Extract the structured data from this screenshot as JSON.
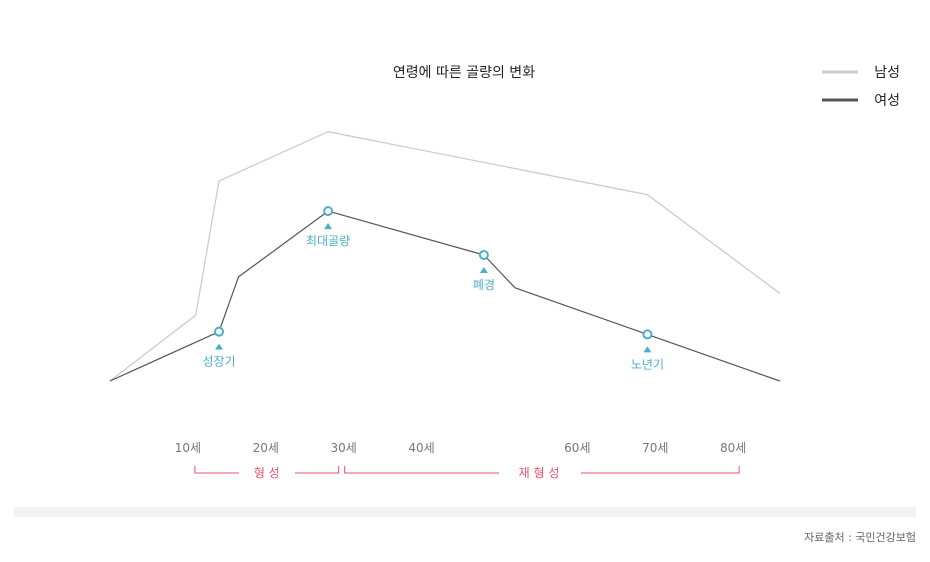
{
  "chart_data": {
    "type": "line",
    "title": "연령에 따른 골량의 변화",
    "legend_position": "top-right",
    "grid": false,
    "xlim": [
      0,
      90
    ],
    "ylim": [
      0,
      100
    ],
    "x_ticks": [
      {
        "value": 10,
        "label": "10세"
      },
      {
        "value": 20,
        "label": "20세"
      },
      {
        "value": 30,
        "label": "30세"
      },
      {
        "value": 40,
        "label": "40세"
      },
      {
        "value": 60,
        "label": "60세"
      },
      {
        "value": 70,
        "label": "70세"
      },
      {
        "value": 80,
        "label": "80세"
      }
    ],
    "series": [
      {
        "name": "남성",
        "color": "#cccccc",
        "points": [
          {
            "x": 0,
            "y": 0
          },
          {
            "x": 11,
            "y": 24
          },
          {
            "x": 14,
            "y": 73
          },
          {
            "x": 28,
            "y": 91
          },
          {
            "x": 69,
            "y": 68
          },
          {
            "x": 86,
            "y": 32
          }
        ]
      },
      {
        "name": "여성",
        "color": "#555555",
        "points": [
          {
            "x": 0,
            "y": 0
          },
          {
            "x": 14,
            "y": 18
          },
          {
            "x": 16.5,
            "y": 38
          },
          {
            "x": 28,
            "y": 62
          },
          {
            "x": 48,
            "y": 46
          },
          {
            "x": 52,
            "y": 34
          },
          {
            "x": 69,
            "y": 17
          },
          {
            "x": 86,
            "y": 0
          }
        ]
      }
    ],
    "annotations": [
      {
        "label": "성장기",
        "x": 14,
        "y": 18
      },
      {
        "label": "최대골량",
        "x": 28,
        "y": 62
      },
      {
        "label": "폐경",
        "x": 48,
        "y": 46
      },
      {
        "label": "노년기",
        "x": 69,
        "y": 17
      }
    ],
    "stages": [
      {
        "label": "형 성",
        "from": 10,
        "to": 30
      },
      {
        "label": "재 형 성",
        "from": 30,
        "to": 80
      }
    ],
    "colors": {
      "male": "#cccccc",
      "female": "#555555",
      "marker": "#4aafc8",
      "stage": "#e8536a"
    }
  },
  "footer": {
    "source": "자료출처 : 국민건강보험"
  }
}
